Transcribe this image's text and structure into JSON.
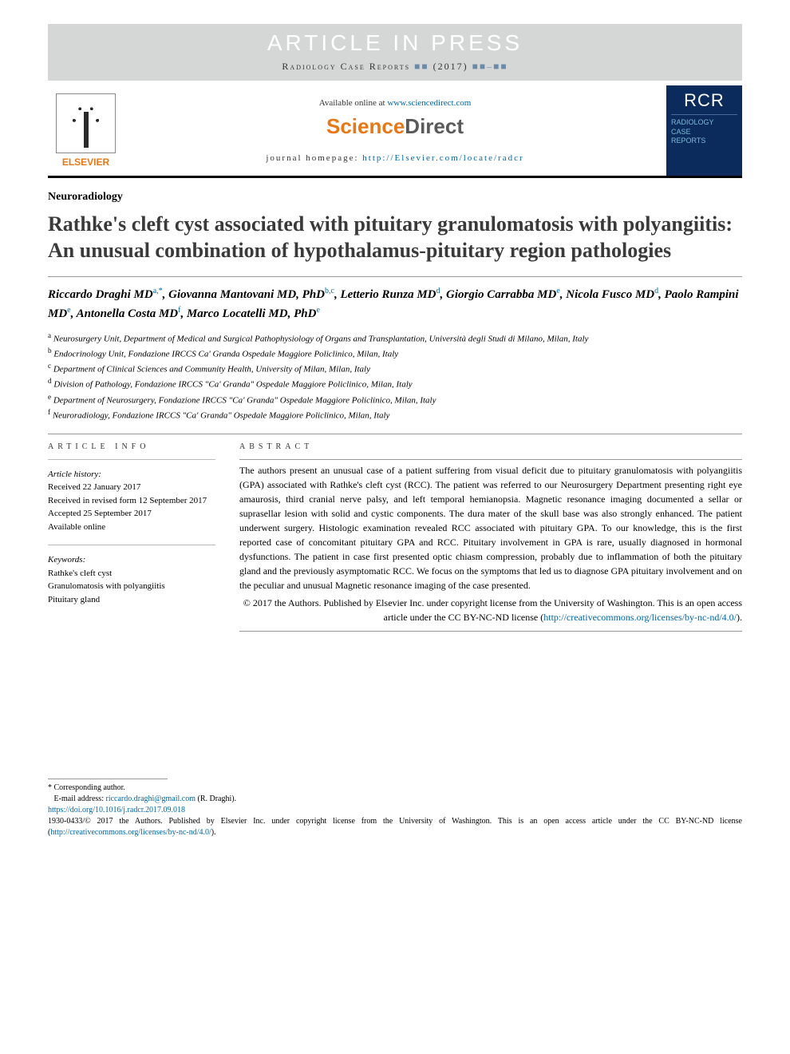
{
  "banner": {
    "press_text": "ARTICLE IN PRESS",
    "citation_journal": "Radiology Case Reports",
    "citation_year": "(2017)",
    "citation_blocks": "■■",
    "citation_pages": "■■–■■"
  },
  "header": {
    "elsevier_label": "ELSEVIER",
    "available_prefix": "Available online at ",
    "available_url": "www.sciencedirect.com",
    "sd_logo_part1": "Science",
    "sd_logo_part2": "Direct",
    "homepage_prefix": "journal homepage: ",
    "homepage_url": "http://Elsevier.com/locate/radcr",
    "rcr_big": "RCR",
    "rcr_line1": "RADIOLOGY",
    "rcr_line2": "CASE",
    "rcr_line3": "REPORTS"
  },
  "article": {
    "section": "Neuroradiology",
    "title": "Rathke's cleft cyst associated with pituitary granulomatosis with polyangiitis: An unusual combination of hypothalamus-pituitary region pathologies"
  },
  "authors": [
    {
      "name": "Riccardo Draghi MD",
      "aff": "a,*"
    },
    {
      "name": "Giovanna Mantovani MD, PhD",
      "aff": "b,c"
    },
    {
      "name": "Letterio Runza MD",
      "aff": "d"
    },
    {
      "name": "Giorgio Carrabba MD",
      "aff": "e"
    },
    {
      "name": "Nicola Fusco MD",
      "aff": "d"
    },
    {
      "name": "Paolo Rampini MD",
      "aff": "e"
    },
    {
      "name": "Antonella Costa MD",
      "aff": "f"
    },
    {
      "name": "Marco Locatelli MD, PhD",
      "aff": "e"
    }
  ],
  "affiliations": [
    {
      "key": "a",
      "text": "Neurosurgery Unit, Department of Medical and Surgical Pathophysiology of Organs and Transplantation, Università degli Studi di Milano, Milan, Italy"
    },
    {
      "key": "b",
      "text": "Endocrinology Unit, Fondazione IRCCS Ca' Granda Ospedale Maggiore Policlinico, Milan, Italy"
    },
    {
      "key": "c",
      "text": "Department of Clinical Sciences and Community Health, University of Milan, Milan, Italy"
    },
    {
      "key": "d",
      "text": "Division of Pathology, Fondazione IRCCS \"Ca' Granda\" Ospedale Maggiore Policlinico, Milan, Italy"
    },
    {
      "key": "e",
      "text": "Department of Neurosurgery, Fondazione IRCCS \"Ca' Granda\" Ospedale Maggiore Policlinico, Milan, Italy"
    },
    {
      "key": "f",
      "text": "Neuroradiology, Fondazione IRCCS \"Ca' Granda\" Ospedale Maggiore Policlinico, Milan, Italy"
    }
  ],
  "info": {
    "heading": "article info",
    "history_label": "Article history:",
    "received": "Received 22 January 2017",
    "revised": "Received in revised form 12 September 2017",
    "accepted": "Accepted 25 September 2017",
    "online": "Available online",
    "keywords_label": "Keywords:",
    "keywords": [
      "Rathke's cleft cyst",
      "Granulomatosis with polyangiitis",
      "Pituitary gland"
    ]
  },
  "abstract": {
    "heading": "abstract",
    "body": "The authors present an unusual case of a patient suffering from visual deficit due to pituitary granulomatosis with polyangiitis (GPA) associated with Rathke's cleft cyst (RCC). The patient was referred to our Neurosurgery Department presenting right eye amaurosis, third cranial nerve palsy, and left temporal hemianopsia. Magnetic resonance imaging documented a sellar or suprasellar lesion with solid and cystic components. The dura mater of the skull base was also strongly enhanced. The patient underwent surgery. Histologic examination revealed RCC associated with pituitary GPA. To our knowledge, this is the first reported case of concomitant pituitary GPA and RCC. Pituitary involvement in GPA is rare, usually diagnosed in hormonal dysfunctions. The patient in case first presented optic chiasm compression, probably due to inflammation of both the pituitary gland and the previously asymptomatic RCC. We focus on the symptoms that led us to diagnose GPA pituitary involvement and on the peculiar and unusual Magnetic resonance imaging of the case presented.",
    "copyright": "© 2017 the Authors. Published by Elsevier Inc. under copyright license from the University of Washington. This is an open access article under the CC BY-NC-ND license (",
    "license_url": "http://creativecommons.org/licenses/by-nc-nd/4.0/",
    "copyright_suffix": ")."
  },
  "footer": {
    "corresponding": "* Corresponding author.",
    "email_label": "E-mail address: ",
    "email": "riccardo.draghi@gmail.com",
    "email_suffix": " (R. Draghi).",
    "doi": "https://doi.org/10.1016/j.radcr.2017.09.018",
    "copyright_line": "1930-0433/© 2017 the Authors. Published by Elsevier Inc. under copyright license from the University of Washington. This is an open access article under the CC BY-NC-ND license (",
    "license_url": "http://creativecommons.org/licenses/by-nc-nd/4.0/",
    "copyright_suffix": ")."
  },
  "colors": {
    "banner_bg": "#d5d7d6",
    "banner_text": "#ffffff",
    "link": "#0066a4",
    "orange": "#e67817",
    "rcr_bg": "#0a2b5c",
    "rcr_text": "#7fb8d8",
    "rule": "#999999"
  }
}
